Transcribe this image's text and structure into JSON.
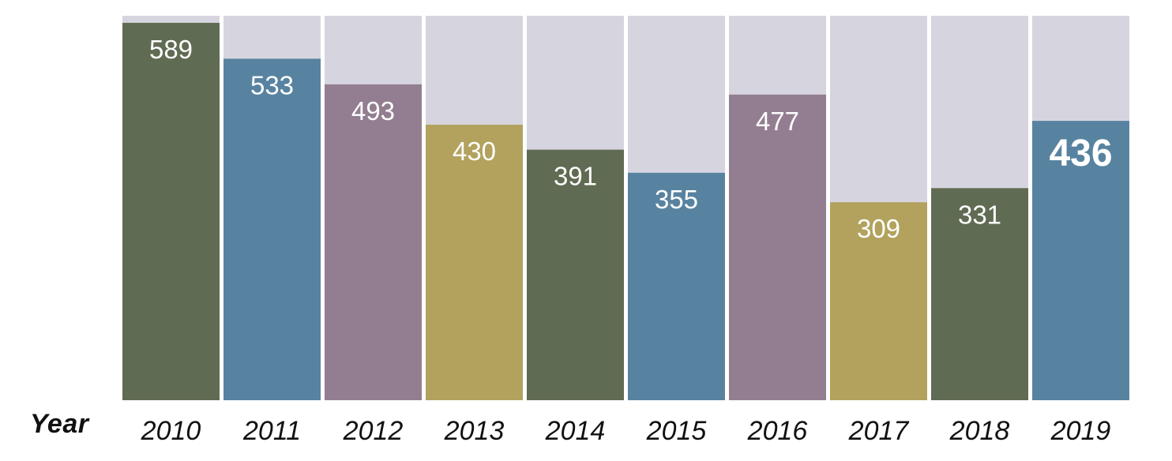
{
  "chart_data": {
    "type": "bar",
    "title": "",
    "xlabel": "Year",
    "ylabel": "",
    "categories": [
      "2010",
      "2011",
      "2012",
      "2013",
      "2014",
      "2015",
      "2016",
      "2017",
      "2018",
      "2019"
    ],
    "values": [
      589,
      533,
      493,
      430,
      391,
      355,
      477,
      309,
      331,
      436
    ],
    "ylim": [
      0,
      600
    ],
    "highlight_category": "2019",
    "grid": false,
    "legend": "none",
    "colors": {
      "background_bar": "#d6d5df",
      "bars": [
        "#606b53",
        "#5883a0",
        "#937e91",
        "#b2a25d",
        "#606b53",
        "#5883a0",
        "#937e91",
        "#b2a25d",
        "#606b53",
        "#5883a0"
      ],
      "tick_label": "#111111",
      "tick_label_highlight": "#3d7fb0",
      "bar_label": "#ffffff"
    }
  }
}
